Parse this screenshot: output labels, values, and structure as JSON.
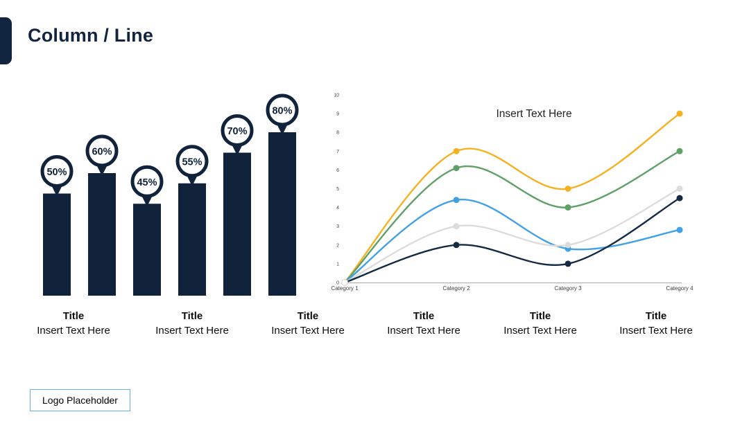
{
  "header": {
    "title": "Column / Line"
  },
  "theme": {
    "navy": "#112540",
    "logo_border": "#66B2E0",
    "caption_text_color": "#0d0d0d"
  },
  "chart_data": [
    {
      "type": "bar",
      "title": "",
      "categories": [
        "",
        "",
        "",
        "",
        "",
        ""
      ],
      "values": [
        50,
        60,
        45,
        55,
        70,
        80
      ],
      "labels": [
        "50%",
        "60%",
        "45%",
        "55%",
        "70%",
        "80%"
      ],
      "unit": "%",
      "color": "#10233A",
      "marker_style": "pin-balloon",
      "ylim": [
        0,
        100
      ],
      "grid": false,
      "legend": "none"
    },
    {
      "type": "line",
      "title": "Insert Text Here",
      "x": [
        "Category 1",
        "Category 2",
        "Category 3",
        "Category 4"
      ],
      "series": [
        {
          "name": "yellow",
          "color": "#F4B223",
          "values": [
            0,
            7,
            5,
            9
          ]
        },
        {
          "name": "green",
          "color": "#5FA068",
          "values": [
            0,
            6.1,
            4,
            7
          ]
        },
        {
          "name": "blue",
          "color": "#41A1E4",
          "values": [
            0,
            4.4,
            1.8,
            2.8
          ]
        },
        {
          "name": "gray",
          "color": "#DCDCDC",
          "values": [
            0,
            3,
            2,
            5
          ]
        },
        {
          "name": "navy",
          "color": "#142A43",
          "values": [
            0,
            2,
            1,
            4.5
          ]
        }
      ],
      "ylim": [
        0,
        10
      ],
      "yticks": [
        0,
        1,
        2,
        3,
        4,
        5,
        6,
        7,
        8,
        9,
        10
      ],
      "curve": "smooth-spline",
      "grid": false,
      "legend": "none"
    }
  ],
  "footer": {
    "groups": [
      {
        "title": "Title",
        "text": "Insert Text Here"
      },
      {
        "title": "Title",
        "text": "Insert Text Here"
      },
      {
        "title": "Title",
        "text": "Insert Text Here"
      },
      {
        "title": "Title",
        "text": "Insert Text Here"
      },
      {
        "title": "Title",
        "text": "Insert Text Here"
      },
      {
        "title": "Title",
        "text": "Insert Text Here"
      }
    ]
  },
  "logo": {
    "label": "Logo Placeholder"
  }
}
